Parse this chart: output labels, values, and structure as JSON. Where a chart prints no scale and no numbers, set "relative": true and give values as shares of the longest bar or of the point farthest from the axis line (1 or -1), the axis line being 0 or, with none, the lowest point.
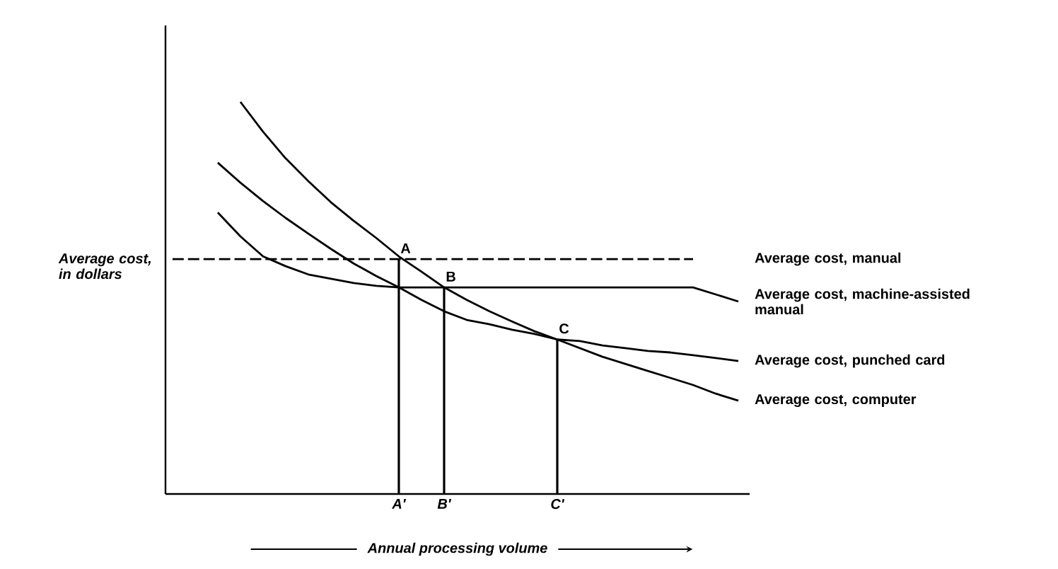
{
  "chart_data": {
    "type": "line",
    "relative": true,
    "xlabel": "Annual processing volume",
    "ylabel": "Average cost, in dollars",
    "categories": [
      null,
      null,
      null,
      null,
      null,
      null,
      null,
      null,
      null,
      null,
      "A'",
      null,
      "B'",
      null,
      null,
      null,
      null,
      "C'",
      null,
      null,
      null,
      null,
      null,
      null,
      null,
      null
    ],
    "series": [
      {
        "name": "Average cost, manual",
        "color": "#000000",
        "line_style": "dashed",
        "values": [
          0.599,
          0.599,
          0.599,
          0.599,
          0.599,
          0.599,
          0.599,
          0.599,
          0.599,
          0.599,
          0.599,
          0.599,
          0.599,
          0.599,
          0.599,
          0.599,
          0.599,
          0.599,
          0.599,
          0.599,
          0.599,
          0.599,
          0.599,
          0.599,
          null,
          null
        ]
      },
      {
        "name": "Average cost, machine-assisted manual",
        "color": "#000000",
        "values": [
          null,
          null,
          0.718,
          0.657,
          0.606,
          0.581,
          0.56,
          0.549,
          0.538,
          0.531,
          0.527,
          0.527,
          0.527,
          0.527,
          0.527,
          0.527,
          0.527,
          0.527,
          0.527,
          0.527,
          0.527,
          0.527,
          0.527,
          0.527,
          0.509,
          0.491
        ]
      },
      {
        "name": "Average cost, punched card",
        "color": "#000000",
        "values": [
          null,
          null,
          0.845,
          0.794,
          0.747,
          0.704,
          0.664,
          0.625,
          0.588,
          0.556,
          0.527,
          0.495,
          0.466,
          0.444,
          0.433,
          0.419,
          0.408,
          0.394,
          0.39,
          0.379,
          0.372,
          0.365,
          0.361,
          0.354,
          0.347,
          0.339
        ]
      },
      {
        "name": "Average cost, computer",
        "color": "#000000",
        "values": [
          null,
          null,
          null,
          1.0,
          0.924,
          0.856,
          0.798,
          0.744,
          0.697,
          0.653,
          0.606,
          0.567,
          0.527,
          0.495,
          0.466,
          0.44,
          0.415,
          0.394,
          0.372,
          0.35,
          0.332,
          0.314,
          0.296,
          0.278,
          0.256,
          0.238
        ]
      },
      {
        "type": "bar",
        "color": "#000000",
        "values": [
          null,
          null,
          null,
          null,
          null,
          null,
          null,
          null,
          null,
          null,
          0.599,
          null,
          0.527,
          null,
          null,
          null,
          null,
          0.394,
          null,
          null,
          null,
          null,
          null,
          null,
          null,
          null
        ]
      }
    ],
    "annotations": [
      {
        "text": "A",
        "x": "A'",
        "y": 0.599
      },
      {
        "text": "B",
        "x": "B'",
        "y": 0.527
      },
      {
        "text": "C",
        "x": "C'",
        "y": 0.394
      }
    ]
  }
}
